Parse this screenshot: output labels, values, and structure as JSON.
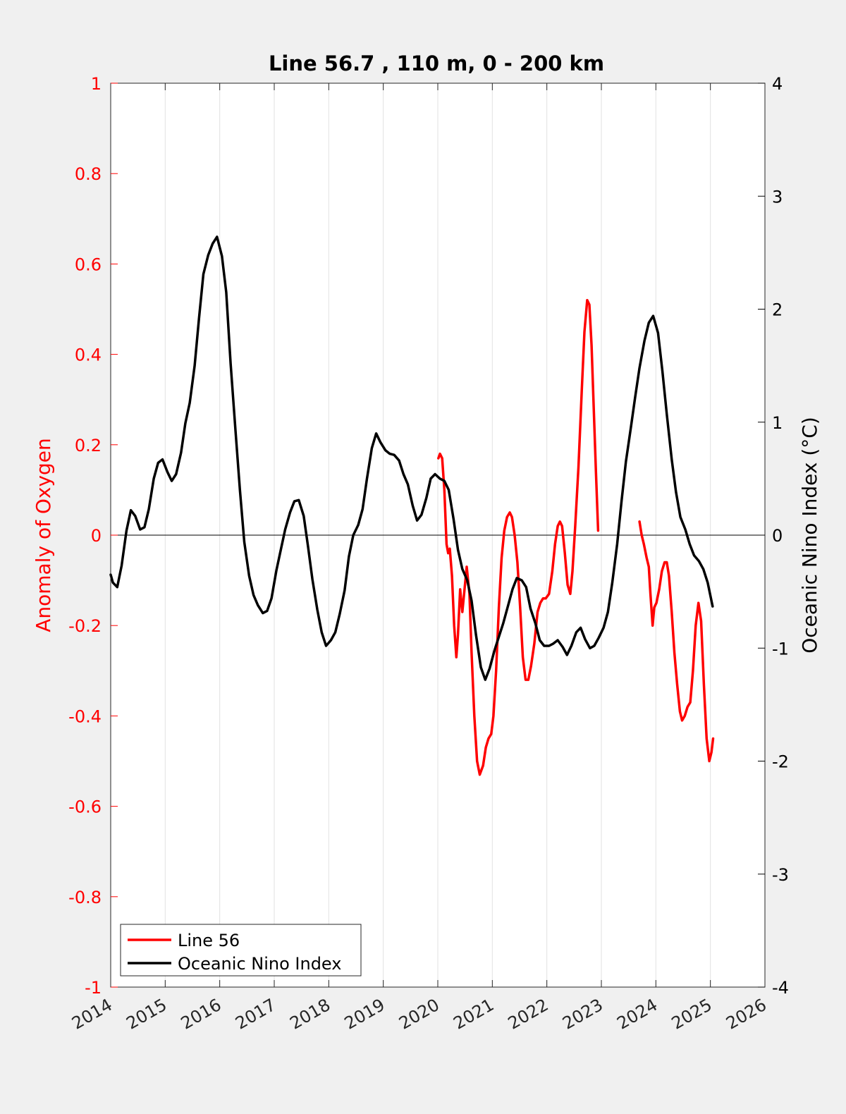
{
  "chart_data": {
    "type": "line",
    "title": "Line 56.7 , 110 m, 0 - 200 km",
    "xlabel": "",
    "ylabel_left": "Anomaly of Oxygen",
    "ylabel_right": "Oceanic Nino Index (°C)",
    "xlim": [
      2014,
      2026
    ],
    "ylim_left": [
      -1,
      1
    ],
    "ylim_right": [
      -4,
      4
    ],
    "x_ticks": [
      2014,
      2015,
      2016,
      2017,
      2018,
      2019,
      2020,
      2021,
      2022,
      2023,
      2024,
      2025,
      2026
    ],
    "y_ticks_left": [
      1,
      0.8,
      0.6,
      0.4,
      0.2,
      0,
      -0.2,
      -0.4,
      -0.6,
      -0.8,
      -1
    ],
    "y_ticks_right": [
      4,
      3,
      2,
      1,
      0,
      -1,
      -2,
      -3,
      -4
    ],
    "grid": "vertical",
    "legend_position": "bottom-left",
    "colors": {
      "line56": "#ff0000",
      "oni": "#000000",
      "left_axis": "#ff0000",
      "right_axis": "#000000"
    },
    "series": [
      {
        "name": "Line 56",
        "axis": "left",
        "segments": [
          [
            [
              2020.01,
              0.17
            ],
            [
              2020.04,
              0.18
            ],
            [
              2020.08,
              0.17
            ],
            [
              2020.12,
              0.1
            ],
            [
              2020.16,
              -0.02
            ],
            [
              2020.19,
              -0.04
            ],
            [
              2020.22,
              -0.03
            ],
            [
              2020.26,
              -0.09
            ],
            [
              2020.3,
              -0.2
            ],
            [
              2020.34,
              -0.27
            ],
            [
              2020.37,
              -0.22
            ],
            [
              2020.41,
              -0.12
            ],
            [
              2020.45,
              -0.17
            ],
            [
              2020.49,
              -0.12
            ],
            [
              2020.53,
              -0.07
            ],
            [
              2020.58,
              -0.13
            ],
            [
              2020.62,
              -0.26
            ],
            [
              2020.67,
              -0.4
            ],
            [
              2020.72,
              -0.5
            ],
            [
              2020.77,
              -0.53
            ],
            [
              2020.83,
              -0.51
            ],
            [
              2020.88,
              -0.47
            ],
            [
              2020.93,
              -0.45
            ],
            [
              2020.98,
              -0.44
            ],
            [
              2021.02,
              -0.4
            ],
            [
              2021.07,
              -0.3
            ],
            [
              2021.12,
              -0.16
            ],
            [
              2021.17,
              -0.05
            ],
            [
              2021.22,
              0.01
            ],
            [
              2021.27,
              0.04
            ],
            [
              2021.32,
              0.05
            ],
            [
              2021.36,
              0.04
            ],
            [
              2021.41,
              0.0
            ],
            [
              2021.46,
              -0.06
            ],
            [
              2021.51,
              -0.16
            ],
            [
              2021.56,
              -0.27
            ],
            [
              2021.61,
              -0.32
            ],
            [
              2021.66,
              -0.32
            ],
            [
              2021.71,
              -0.29
            ],
            [
              2021.77,
              -0.24
            ],
            [
              2021.83,
              -0.17
            ],
            [
              2021.88,
              -0.15
            ],
            [
              2021.93,
              -0.14
            ],
            [
              2021.98,
              -0.14
            ],
            [
              2022.04,
              -0.13
            ],
            [
              2022.1,
              -0.08
            ],
            [
              2022.15,
              -0.02
            ],
            [
              2022.2,
              0.02
            ],
            [
              2022.24,
              0.03
            ],
            [
              2022.28,
              0.02
            ],
            [
              2022.33,
              -0.04
            ],
            [
              2022.38,
              -0.11
            ],
            [
              2022.43,
              -0.13
            ],
            [
              2022.47,
              -0.08
            ],
            [
              2022.52,
              0.02
            ],
            [
              2022.58,
              0.15
            ],
            [
              2022.64,
              0.32
            ],
            [
              2022.69,
              0.45
            ],
            [
              2022.74,
              0.52
            ],
            [
              2022.78,
              0.51
            ],
            [
              2022.82,
              0.42
            ],
            [
              2022.86,
              0.28
            ],
            [
              2022.9,
              0.14
            ],
            [
              2022.94,
              0.01
            ]
          ],
          [
            [
              2023.7,
              0.03
            ],
            [
              2023.74,
              0.0
            ],
            [
              2023.78,
              -0.02
            ],
            [
              2023.83,
              -0.05
            ],
            [
              2023.87,
              -0.07
            ],
            [
              2023.9,
              -0.13
            ],
            [
              2023.94,
              -0.2
            ],
            [
              2023.97,
              -0.16
            ],
            [
              2024.01,
              -0.15
            ],
            [
              2024.06,
              -0.12
            ],
            [
              2024.11,
              -0.08
            ],
            [
              2024.16,
              -0.06
            ],
            [
              2024.2,
              -0.06
            ],
            [
              2024.24,
              -0.09
            ],
            [
              2024.29,
              -0.17
            ],
            [
              2024.34,
              -0.26
            ],
            [
              2024.39,
              -0.33
            ],
            [
              2024.44,
              -0.39
            ],
            [
              2024.48,
              -0.41
            ],
            [
              2024.53,
              -0.4
            ],
            [
              2024.58,
              -0.38
            ],
            [
              2024.63,
              -0.37
            ],
            [
              2024.68,
              -0.3
            ],
            [
              2024.73,
              -0.2
            ],
            [
              2024.78,
              -0.15
            ],
            [
              2024.83,
              -0.19
            ],
            [
              2024.88,
              -0.33
            ],
            [
              2024.93,
              -0.45
            ],
            [
              2024.98,
              -0.5
            ],
            [
              2025.02,
              -0.48
            ],
            [
              2025.05,
              -0.45
            ]
          ]
        ]
      },
      {
        "name": "Oceanic Nino Index",
        "axis": "right",
        "segments": [
          [
            [
              2014.0,
              -0.35
            ],
            [
              2014.04,
              -0.42
            ],
            [
              2014.12,
              -0.46
            ],
            [
              2014.2,
              -0.27
            ],
            [
              2014.29,
              0.04
            ],
            [
              2014.37,
              0.22
            ],
            [
              2014.45,
              0.17
            ],
            [
              2014.54,
              0.05
            ],
            [
              2014.62,
              0.07
            ],
            [
              2014.7,
              0.23
            ],
            [
              2014.79,
              0.5
            ],
            [
              2014.87,
              0.64
            ],
            [
              2014.95,
              0.67
            ],
            [
              2015.04,
              0.56
            ],
            [
              2015.12,
              0.48
            ],
            [
              2015.2,
              0.54
            ],
            [
              2015.29,
              0.73
            ],
            [
              2015.37,
              0.99
            ],
            [
              2015.45,
              1.17
            ],
            [
              2015.54,
              1.5
            ],
            [
              2015.62,
              1.92
            ],
            [
              2015.7,
              2.31
            ],
            [
              2015.79,
              2.48
            ],
            [
              2015.87,
              2.58
            ],
            [
              2015.95,
              2.64
            ],
            [
              2016.04,
              2.47
            ],
            [
              2016.12,
              2.15
            ],
            [
              2016.2,
              1.52
            ],
            [
              2016.29,
              0.92
            ],
            [
              2016.37,
              0.4
            ],
            [
              2016.45,
              -0.06
            ],
            [
              2016.54,
              -0.36
            ],
            [
              2016.62,
              -0.53
            ],
            [
              2016.7,
              -0.62
            ],
            [
              2016.79,
              -0.69
            ],
            [
              2016.87,
              -0.67
            ],
            [
              2016.95,
              -0.56
            ],
            [
              2017.04,
              -0.31
            ],
            [
              2017.12,
              -0.13
            ],
            [
              2017.2,
              0.05
            ],
            [
              2017.29,
              0.2
            ],
            [
              2017.37,
              0.3
            ],
            [
              2017.45,
              0.31
            ],
            [
              2017.54,
              0.17
            ],
            [
              2017.62,
              -0.1
            ],
            [
              2017.7,
              -0.39
            ],
            [
              2017.79,
              -0.66
            ],
            [
              2017.87,
              -0.86
            ],
            [
              2017.95,
              -0.98
            ],
            [
              2018.04,
              -0.93
            ],
            [
              2018.12,
              -0.86
            ],
            [
              2018.2,
              -0.7
            ],
            [
              2018.29,
              -0.49
            ],
            [
              2018.37,
              -0.19
            ],
            [
              2018.45,
              0.0
            ],
            [
              2018.54,
              0.09
            ],
            [
              2018.62,
              0.23
            ],
            [
              2018.7,
              0.5
            ],
            [
              2018.79,
              0.77
            ],
            [
              2018.87,
              0.9
            ],
            [
              2018.95,
              0.82
            ],
            [
              2019.04,
              0.75
            ],
            [
              2019.12,
              0.72
            ],
            [
              2019.2,
              0.71
            ],
            [
              2019.29,
              0.66
            ],
            [
              2019.37,
              0.54
            ],
            [
              2019.45,
              0.45
            ],
            [
              2019.54,
              0.26
            ],
            [
              2019.62,
              0.13
            ],
            [
              2019.7,
              0.18
            ],
            [
              2019.79,
              0.33
            ],
            [
              2019.87,
              0.5
            ],
            [
              2019.95,
              0.54
            ],
            [
              2020.04,
              0.5
            ],
            [
              2020.12,
              0.48
            ],
            [
              2020.2,
              0.4
            ],
            [
              2020.29,
              0.14
            ],
            [
              2020.37,
              -0.13
            ],
            [
              2020.45,
              -0.3
            ],
            [
              2020.54,
              -0.4
            ],
            [
              2020.62,
              -0.58
            ],
            [
              2020.7,
              -0.88
            ],
            [
              2020.79,
              -1.17
            ],
            [
              2020.87,
              -1.28
            ],
            [
              2020.95,
              -1.18
            ],
            [
              2021.04,
              -1.02
            ],
            [
              2021.12,
              -0.9
            ],
            [
              2021.2,
              -0.78
            ],
            [
              2021.29,
              -0.62
            ],
            [
              2021.37,
              -0.48
            ],
            [
              2021.45,
              -0.38
            ],
            [
              2021.54,
              -0.4
            ],
            [
              2021.62,
              -0.46
            ],
            [
              2021.7,
              -0.65
            ],
            [
              2021.79,
              -0.78
            ],
            [
              2021.87,
              -0.93
            ],
            [
              2021.95,
              -0.98
            ],
            [
              2022.04,
              -0.98
            ],
            [
              2022.12,
              -0.96
            ],
            [
              2022.2,
              -0.93
            ],
            [
              2022.29,
              -0.99
            ],
            [
              2022.37,
              -1.06
            ],
            [
              2022.45,
              -0.98
            ],
            [
              2022.54,
              -0.86
            ],
            [
              2022.62,
              -0.82
            ],
            [
              2022.7,
              -0.92
            ],
            [
              2022.79,
              -1.0
            ],
            [
              2022.87,
              -0.98
            ],
            [
              2022.95,
              -0.91
            ],
            [
              2023.04,
              -0.82
            ],
            [
              2023.12,
              -0.68
            ],
            [
              2023.2,
              -0.42
            ],
            [
              2023.29,
              -0.08
            ],
            [
              2023.37,
              0.3
            ],
            [
              2023.45,
              0.65
            ],
            [
              2023.54,
              0.95
            ],
            [
              2023.62,
              1.22
            ],
            [
              2023.7,
              1.48
            ],
            [
              2023.79,
              1.72
            ],
            [
              2023.87,
              1.88
            ],
            [
              2023.95,
              1.94
            ],
            [
              2024.04,
              1.79
            ],
            [
              2024.12,
              1.45
            ],
            [
              2024.2,
              1.07
            ],
            [
              2024.29,
              0.67
            ],
            [
              2024.37,
              0.38
            ],
            [
              2024.45,
              0.16
            ],
            [
              2024.54,
              0.05
            ],
            [
              2024.62,
              -0.08
            ],
            [
              2024.7,
              -0.18
            ],
            [
              2024.79,
              -0.23
            ],
            [
              2024.87,
              -0.3
            ],
            [
              2024.95,
              -0.42
            ],
            [
              2025.04,
              -0.63
            ]
          ]
        ]
      }
    ]
  }
}
